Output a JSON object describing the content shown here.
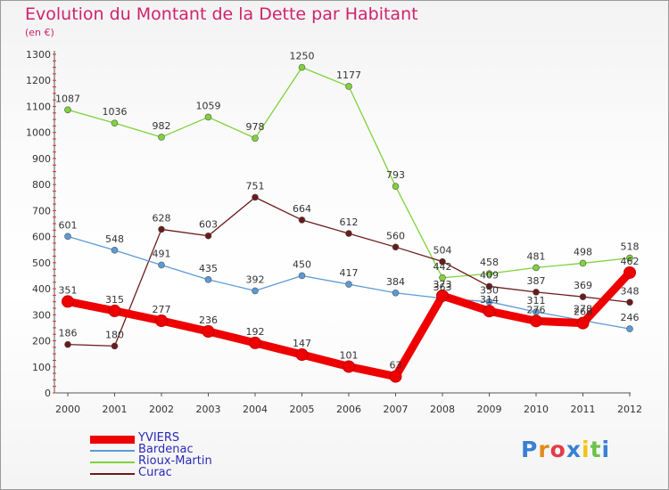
{
  "title": "Evolution du Montant de la Dette par Habitant",
  "subtitle": "(en €)",
  "logo": {
    "text": "Proxiti",
    "colors": [
      "#3b7fd6",
      "#e28a1a",
      "#e23b4a",
      "#3b7fd6",
      "#f1c40f",
      "#6cc24a",
      "#3b7fd6"
    ]
  },
  "chart_data": {
    "type": "line",
    "x": [
      "2000",
      "2001",
      "2002",
      "2003",
      "2004",
      "2005",
      "2006",
      "2007",
      "2008",
      "2009",
      "2010",
      "2011",
      "2012"
    ],
    "ylim": [
      0,
      1300
    ],
    "yticks": [
      0,
      100,
      200,
      300,
      400,
      500,
      600,
      700,
      800,
      900,
      1000,
      1100,
      1200,
      1300
    ],
    "grid": "none",
    "legend": "bottom-left",
    "series": [
      {
        "name": "YVIERS",
        "color": "#ee0000",
        "values": [
          351,
          315,
          277,
          236,
          192,
          147,
          101,
          63,
          373,
          314,
          276,
          268,
          462
        ],
        "labels": [
          "351",
          "315",
          "277",
          "236",
          "192",
          "147",
          "101",
          "63",
          "373",
          "314",
          "276",
          "268",
          "462"
        ]
      },
      {
        "name": "Bardenac",
        "color": "#5b9bd5",
        "values": [
          601,
          548,
          491,
          435,
          392,
          450,
          417,
          384,
          363,
          350,
          311,
          278,
          246
        ],
        "labels": [
          "601",
          "548",
          "491",
          "435",
          "392",
          "450",
          "417",
          "384",
          "363",
          "350",
          "311",
          "278",
          "246"
        ]
      },
      {
        "name": "Rioux-Martin",
        "color": "#7fd23a",
        "values": [
          1087,
          1036,
          982,
          1059,
          978,
          1250,
          1177,
          793,
          442,
          458,
          481,
          498,
          518
        ],
        "labels": [
          "1087",
          "1036",
          "982",
          "1059",
          "978",
          "1250",
          "1177",
          "793",
          "442",
          "458",
          "481",
          "498",
          "518"
        ]
      },
      {
        "name": "Curac",
        "color": "#6b1a1a",
        "values": [
          186,
          180,
          628,
          603,
          751,
          664,
          612,
          560,
          504,
          409,
          387,
          369,
          348
        ],
        "labels": [
          "186",
          "180",
          "628",
          "603",
          "751",
          "664",
          "612",
          "560",
          "504",
          "409",
          "387",
          "369",
          "348"
        ]
      }
    ]
  }
}
